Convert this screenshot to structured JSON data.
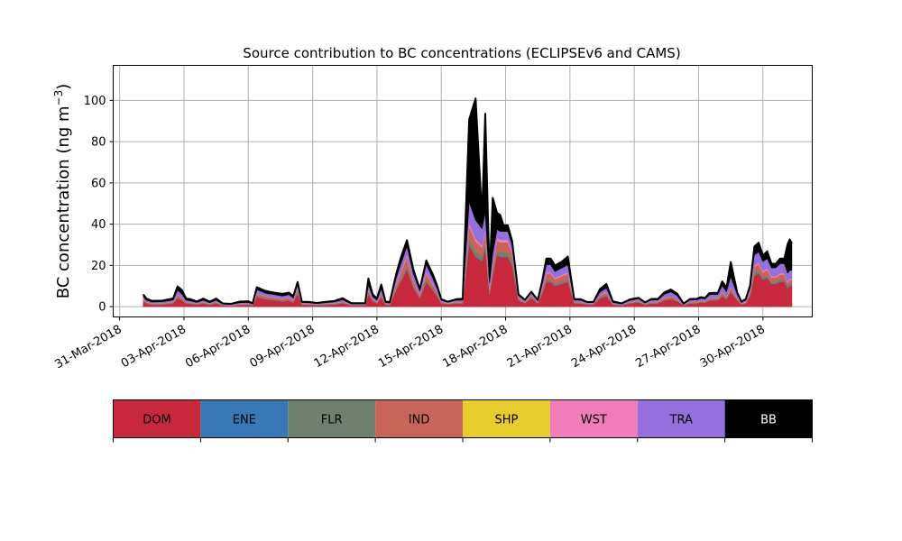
{
  "chart_data": {
    "type": "area",
    "title": "Source contribution to BC concentrations (ECLIPSEv6 and CAMS)",
    "ylabel": "BC concentration (ng m",
    "ylabel_sup": "−3",
    "ylabel_close": ")",
    "xlabel": "",
    "ylim": [
      -5,
      117
    ],
    "yticks": [
      0,
      20,
      40,
      60,
      80,
      100
    ],
    "yticklabels": [
      "0",
      "20",
      "40",
      "60",
      "80",
      "100"
    ],
    "xlim": [
      -0.3,
      32.3
    ],
    "xticks": [
      0,
      3,
      6,
      9,
      12,
      15,
      18,
      21,
      24,
      27,
      30
    ],
    "xticklabels": [
      "31-Mar-2018",
      "03-Apr-2018",
      "06-Apr-2018",
      "09-Apr-2018",
      "12-Apr-2018",
      "15-Apr-2018",
      "18-Apr-2018",
      "21-Apr-2018",
      "24-Apr-2018",
      "27-Apr-2018",
      "30-Apr-2018"
    ],
    "grid": true,
    "stacked": true,
    "x_note": "x in days after 31-Mar-2018",
    "x": [
      1.1,
      1.25,
      1.5,
      2.0,
      2.5,
      2.7,
      2.9,
      3.1,
      3.3,
      3.6,
      3.9,
      4.2,
      4.5,
      4.8,
      5.2,
      5.6,
      6.0,
      6.2,
      6.4,
      6.8,
      7.2,
      7.6,
      7.9,
      8.1,
      8.3,
      8.5,
      8.8,
      9.2,
      9.6,
      10.0,
      10.4,
      10.8,
      11.2,
      11.45,
      11.6,
      11.8,
      12.0,
      12.2,
      12.4,
      12.6,
      12.9,
      13.1,
      13.4,
      13.7,
      14.0,
      14.3,
      14.6,
      14.8,
      15.0,
      15.3,
      15.7,
      16.0,
      16.3,
      16.6,
      16.9,
      17.05,
      17.25,
      17.4,
      17.6,
      17.75,
      17.9,
      18.1,
      18.3,
      18.6,
      18.9,
      19.2,
      19.5,
      19.7,
      19.9,
      20.1,
      20.3,
      20.6,
      20.9,
      21.2,
      21.5,
      21.8,
      22.1,
      22.4,
      22.7,
      23.0,
      23.4,
      23.8,
      24.2,
      24.5,
      24.8,
      25.1,
      25.4,
      25.7,
      26.0,
      26.3,
      26.6,
      26.9,
      27.1,
      27.3,
      27.5,
      27.7,
      27.9,
      28.1,
      28.3,
      28.5,
      28.8,
      29.0,
      29.2,
      29.4,
      29.6,
      29.8,
      30.0,
      30.2,
      30.4,
      30.6,
      30.8,
      31.0,
      31.15,
      31.25,
      31.35
    ],
    "series": [
      {
        "name": "DOM",
        "color": "#c8283c",
        "values": [
          2.5,
          1.5,
          0.8,
          0.9,
          1.5,
          4.0,
          3.0,
          1.5,
          1.3,
          0.8,
          1.5,
          0.8,
          1.5,
          0.5,
          0.3,
          0.8,
          0.8,
          0.5,
          4.5,
          3.5,
          3.0,
          2.5,
          3.0,
          2.0,
          6.5,
          0.8,
          0.8,
          0.6,
          0.8,
          1.0,
          1.6,
          0.6,
          0.6,
          0.6,
          6.0,
          2.5,
          1.5,
          4.5,
          0.8,
          0.7,
          8.0,
          12.0,
          18.0,
          9.0,
          4.0,
          12.0,
          8.0,
          5.0,
          1.5,
          1.0,
          1.5,
          1.5,
          30.0,
          24.0,
          22.0,
          28.0,
          6.0,
          15.0,
          25.0,
          24.0,
          24.0,
          24.0,
          20.0,
          3.0,
          1.5,
          4.0,
          1.5,
          6.0,
          12.0,
          12.0,
          10.0,
          11.0,
          12.0,
          1.5,
          1.5,
          1.0,
          1.0,
          4.0,
          5.0,
          1.0,
          0.5,
          1.5,
          2.0,
          0.8,
          1.5,
          1.5,
          3.0,
          3.5,
          2.5,
          0.5,
          1.5,
          1.5,
          2.0,
          1.8,
          2.8,
          3.0,
          3.0,
          5.0,
          3.5,
          7.0,
          3.0,
          1.0,
          1.5,
          5.0,
          15.0,
          16.0,
          13.0,
          14.0,
          11.0,
          11.0,
          12.0,
          12.0,
          9.0,
          10.0,
          10.0
        ]
      },
      {
        "name": "ENE",
        "color": "#3878b4",
        "values": [
          0.1,
          0.1,
          0.1,
          0.1,
          0.1,
          0.1,
          0.1,
          0.1,
          0.1,
          0.1,
          0.1,
          0.1,
          0.1,
          0.1,
          0.1,
          0.1,
          0.1,
          0.1,
          0.1,
          0.1,
          0.1,
          0.1,
          0.1,
          0.1,
          0.1,
          0.1,
          0.1,
          0.1,
          0.1,
          0.1,
          0.1,
          0.1,
          0.1,
          0.1,
          0.1,
          0.1,
          0.1,
          0.1,
          0.1,
          0.1,
          0.1,
          0.1,
          0.2,
          0.1,
          0.1,
          0.2,
          0.1,
          0.1,
          0.1,
          0.1,
          0.1,
          0.1,
          0.2,
          0.2,
          0.2,
          0.2,
          0.1,
          0.2,
          0.2,
          0.2,
          0.2,
          0.2,
          0.2,
          0.1,
          0.1,
          0.1,
          0.1,
          0.1,
          0.1,
          0.1,
          0.1,
          0.1,
          0.1,
          0.1,
          0.1,
          0.1,
          0.1,
          0.1,
          0.1,
          0.1,
          0.1,
          0.1,
          0.1,
          0.1,
          0.1,
          0.1,
          0.1,
          0.1,
          0.1,
          0.1,
          0.1,
          0.1,
          0.1,
          0.1,
          0.1,
          0.1,
          0.1,
          0.1,
          0.1,
          0.1,
          0.1,
          0.1,
          0.1,
          0.1,
          0.1,
          0.1,
          0.1,
          0.1,
          0.1,
          0.1,
          0.1,
          0.1,
          0.1,
          0.1,
          0.1
        ]
      },
      {
        "name": "FLR",
        "color": "#6e8070",
        "values": [
          0.3,
          0.2,
          0.2,
          0.2,
          0.2,
          0.4,
          0.3,
          0.2,
          0.2,
          0.2,
          0.2,
          0.2,
          0.2,
          0.1,
          0.1,
          0.2,
          0.2,
          0.1,
          0.5,
          0.4,
          0.4,
          0.3,
          0.4,
          0.3,
          0.6,
          0.2,
          0.2,
          0.2,
          0.2,
          0.2,
          0.2,
          0.1,
          0.1,
          0.1,
          0.6,
          0.3,
          0.2,
          0.5,
          0.2,
          0.2,
          0.8,
          1.0,
          1.5,
          0.8,
          0.4,
          1.0,
          0.7,
          0.5,
          0.2,
          0.2,
          0.2,
          0.2,
          3.0,
          2.5,
          2.0,
          2.5,
          0.6,
          1.2,
          2.0,
          2.0,
          2.0,
          2.0,
          1.8,
          0.3,
          0.2,
          0.4,
          0.2,
          0.6,
          1.0,
          1.0,
          0.8,
          0.9,
          1.0,
          0.2,
          0.2,
          0.1,
          0.1,
          0.4,
          0.5,
          0.1,
          0.1,
          0.2,
          0.2,
          0.1,
          0.2,
          0.2,
          0.3,
          0.3,
          0.3,
          0.1,
          0.2,
          0.2,
          0.2,
          0.2,
          0.3,
          0.3,
          0.3,
          0.5,
          0.4,
          0.6,
          0.3,
          0.1,
          0.2,
          0.5,
          1.2,
          1.3,
          1.0,
          1.1,
          0.9,
          0.9,
          1.0,
          1.0,
          0.8,
          0.9,
          0.9
        ]
      },
      {
        "name": "IND",
        "color": "#c8645a",
        "values": [
          0.8,
          0.5,
          0.4,
          0.4,
          0.5,
          1.2,
          0.9,
          0.5,
          0.4,
          0.3,
          0.5,
          0.3,
          0.5,
          0.2,
          0.2,
          0.3,
          0.3,
          0.2,
          1.3,
          1.0,
          0.9,
          0.8,
          0.9,
          0.6,
          1.5,
          0.3,
          0.3,
          0.2,
          0.3,
          0.3,
          0.5,
          0.2,
          0.2,
          0.2,
          1.5,
          0.7,
          0.5,
          1.3,
          0.3,
          0.3,
          2.0,
          3.0,
          4.5,
          2.5,
          1.2,
          3.0,
          2.0,
          1.5,
          0.5,
          0.3,
          0.5,
          0.5,
          6.0,
          5.0,
          4.5,
          5.5,
          1.5,
          3.5,
          5.0,
          5.0,
          5.0,
          5.0,
          4.0,
          0.8,
          0.5,
          1.0,
          0.5,
          1.5,
          3.0,
          3.0,
          2.5,
          2.8,
          3.0,
          0.5,
          0.5,
          0.3,
          0.3,
          1.0,
          1.3,
          0.3,
          0.2,
          0.5,
          0.6,
          0.3,
          0.5,
          0.5,
          0.8,
          1.0,
          0.7,
          0.2,
          0.5,
          0.5,
          0.6,
          0.5,
          0.8,
          0.8,
          0.8,
          1.3,
          1.0,
          1.5,
          0.8,
          0.3,
          0.5,
          1.3,
          3.0,
          3.2,
          2.5,
          2.8,
          2.2,
          2.2,
          2.5,
          2.5,
          1.8,
          2.0,
          2.0
        ]
      },
      {
        "name": "SHP",
        "color": "#e6cd2d",
        "values": [
          0.02,
          0.02,
          0.02,
          0.02,
          0.02,
          0.02,
          0.02,
          0.02,
          0.02,
          0.02,
          0.02,
          0.02,
          0.02,
          0.02,
          0.02,
          0.02,
          0.02,
          0.02,
          0.02,
          0.02,
          0.02,
          0.02,
          0.02,
          0.02,
          0.02,
          0.02,
          0.02,
          0.02,
          0.02,
          0.02,
          0.02,
          0.02,
          0.02,
          0.02,
          0.02,
          0.02,
          0.02,
          0.02,
          0.02,
          0.02,
          0.02,
          0.02,
          0.02,
          0.02,
          0.02,
          0.02,
          0.02,
          0.02,
          0.02,
          0.02,
          0.02,
          0.02,
          0.05,
          0.05,
          0.05,
          0.05,
          0.02,
          0.05,
          0.05,
          0.05,
          0.05,
          0.05,
          0.05,
          0.02,
          0.02,
          0.02,
          0.02,
          0.02,
          0.02,
          0.02,
          0.02,
          0.02,
          0.02,
          0.02,
          0.02,
          0.02,
          0.02,
          0.02,
          0.02,
          0.02,
          0.02,
          0.02,
          0.02,
          0.02,
          0.02,
          0.02,
          0.02,
          0.02,
          0.02,
          0.02,
          0.02,
          0.02,
          0.02,
          0.02,
          0.02,
          0.02,
          0.02,
          0.02,
          0.02,
          0.02,
          0.02,
          0.02,
          0.02,
          0.02,
          0.02,
          0.02,
          0.02,
          0.02,
          0.02,
          0.02,
          0.02,
          0.02,
          0.02,
          0.02,
          0.02
        ]
      },
      {
        "name": "WST",
        "color": "#f07db9",
        "values": [
          0.2,
          0.1,
          0.1,
          0.1,
          0.1,
          0.3,
          0.2,
          0.1,
          0.1,
          0.1,
          0.1,
          0.1,
          0.1,
          0.05,
          0.05,
          0.1,
          0.1,
          0.05,
          0.3,
          0.2,
          0.2,
          0.2,
          0.2,
          0.1,
          0.4,
          0.1,
          0.1,
          0.05,
          0.1,
          0.1,
          0.1,
          0.05,
          0.05,
          0.05,
          0.4,
          0.2,
          0.1,
          0.3,
          0.1,
          0.05,
          0.5,
          0.7,
          1.0,
          0.5,
          0.3,
          0.7,
          0.5,
          0.3,
          0.1,
          0.1,
          0.1,
          0.1,
          1.5,
          1.2,
          1.0,
          1.3,
          0.4,
          0.8,
          1.2,
          1.2,
          1.2,
          1.2,
          1.0,
          0.2,
          0.1,
          0.2,
          0.1,
          0.4,
          0.7,
          0.7,
          0.6,
          0.6,
          0.7,
          0.1,
          0.1,
          0.05,
          0.05,
          0.2,
          0.3,
          0.05,
          0.05,
          0.1,
          0.1,
          0.05,
          0.1,
          0.1,
          0.2,
          0.2,
          0.2,
          0.05,
          0.1,
          0.1,
          0.1,
          0.1,
          0.2,
          0.2,
          0.2,
          0.3,
          0.2,
          0.4,
          0.2,
          0.05,
          0.1,
          0.3,
          0.8,
          0.9,
          0.7,
          0.8,
          0.6,
          0.6,
          0.7,
          0.7,
          0.5,
          0.6,
          0.6
        ]
      },
      {
        "name": "TRA",
        "color": "#9370db",
        "values": [
          1.0,
          0.7,
          0.6,
          0.6,
          0.8,
          2.0,
          1.6,
          0.7,
          0.7,
          0.5,
          0.7,
          0.4,
          0.7,
          0.3,
          0.3,
          0.4,
          0.5,
          0.3,
          1.5,
          1.3,
          1.2,
          1.2,
          1.2,
          1.0,
          1.8,
          0.4,
          0.4,
          0.3,
          0.4,
          0.5,
          0.8,
          0.3,
          0.3,
          0.3,
          2.0,
          1.0,
          0.7,
          2.0,
          0.4,
          0.4,
          2.5,
          3.5,
          4.0,
          3.0,
          1.5,
          3.5,
          2.5,
          1.5,
          0.7,
          0.4,
          0.7,
          0.7,
          10.0,
          9.0,
          8.0,
          8.0,
          3.0,
          5.0,
          4.0,
          4.0,
          4.0,
          4.0,
          3.0,
          1.0,
          0.6,
          1.0,
          0.5,
          2.0,
          3.5,
          3.5,
          3.0,
          3.2,
          3.5,
          0.7,
          0.7,
          0.4,
          0.4,
          1.3,
          1.8,
          0.5,
          0.3,
          0.6,
          0.8,
          0.4,
          0.8,
          0.8,
          1.5,
          2.0,
          1.5,
          0.3,
          0.8,
          0.8,
          1.0,
          1.0,
          1.5,
          1.5,
          1.5,
          3.0,
          2.0,
          5.0,
          1.5,
          0.5,
          0.8,
          2.0,
          5.0,
          5.0,
          4.5,
          4.5,
          4.0,
          4.0,
          4.5,
          4.5,
          4.0,
          4.0,
          4.0
        ]
      },
      {
        "name": "BB",
        "color": "#000000",
        "values": [
          1.0,
          0.8,
          0.6,
          0.6,
          0.8,
          1.8,
          2.0,
          0.8,
          0.8,
          0.5,
          0.8,
          0.5,
          0.8,
          0.3,
          0.3,
          0.5,
          0.6,
          0.3,
          1.2,
          1.1,
          1.0,
          1.1,
          1.0,
          1.0,
          1.0,
          0.4,
          0.4,
          0.3,
          0.4,
          0.5,
          0.8,
          0.3,
          0.3,
          0.3,
          3.0,
          1.2,
          0.8,
          2.0,
          0.5,
          0.5,
          2.0,
          3.0,
          3.0,
          2.0,
          1.0,
          2.0,
          2.0,
          1.5,
          0.5,
          0.3,
          0.5,
          0.7,
          40.0,
          59.0,
          6.0,
          48.0,
          3.0,
          27.0,
          8.0,
          8.0,
          3.0,
          3.0,
          2.0,
          0.5,
          0.3,
          0.5,
          0.3,
          1.5,
          3.0,
          3.0,
          3.0,
          3.0,
          4.0,
          0.5,
          0.5,
          0.3,
          0.3,
          1.5,
          2.0,
          0.5,
          0.3,
          0.5,
          0.5,
          0.3,
          0.5,
          0.5,
          1.0,
          1.2,
          1.0,
          0.2,
          0.5,
          0.5,
          0.6,
          0.5,
          0.8,
          0.8,
          0.8,
          2.0,
          2.0,
          7.0,
          1.0,
          0.3,
          0.5,
          1.0,
          4.0,
          4.5,
          3.0,
          3.5,
          2.0,
          2.0,
          2.5,
          2.5,
          14.0,
          15.0,
          13.0
        ]
      }
    ],
    "legend": {
      "placement": "below",
      "entries": [
        {
          "label": "DOM",
          "color": "#c8283c",
          "text_color": "#000000"
        },
        {
          "label": "ENE",
          "color": "#3878b4",
          "text_color": "#000000"
        },
        {
          "label": "FLR",
          "color": "#6e8070",
          "text_color": "#000000"
        },
        {
          "label": "IND",
          "color": "#c8645a",
          "text_color": "#000000"
        },
        {
          "label": "SHP",
          "color": "#e6cd2d",
          "text_color": "#000000"
        },
        {
          "label": "WST",
          "color": "#f07db9",
          "text_color": "#000000"
        },
        {
          "label": "TRA",
          "color": "#9370db",
          "text_color": "#000000"
        },
        {
          "label": "BB",
          "color": "#000000",
          "text_color": "#ffffff"
        }
      ]
    }
  }
}
